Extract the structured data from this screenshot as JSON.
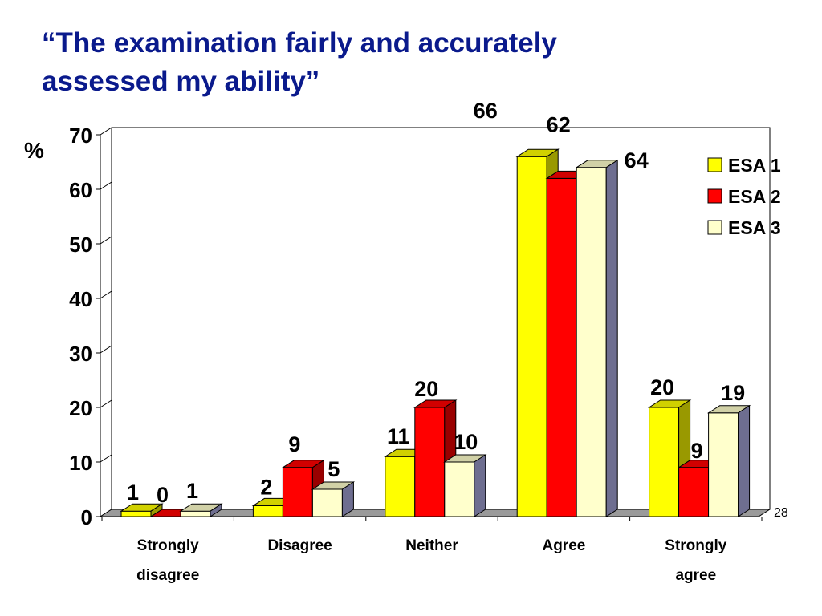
{
  "slide": {
    "title_lines": [
      "“The examination fairly and accurately",
      "assessed my ability”"
    ],
    "page_number": "28"
  },
  "chart_data": {
    "type": "bar",
    "title": "“The examination fairly and accurately assessed my ability”",
    "ylabel": "%",
    "xlabel": "",
    "ylim": [
      0,
      70
    ],
    "yticks": [
      0,
      10,
      20,
      30,
      40,
      50,
      60,
      70
    ],
    "categories": [
      [
        "Strongly",
        "disagree"
      ],
      [
        "Disagree"
      ],
      [
        "Neither"
      ],
      [
        "Agree"
      ],
      [
        "Strongly",
        "agree"
      ]
    ],
    "series": [
      {
        "name": "ESA 1",
        "values": [
          1,
          2,
          11,
          66,
          20
        ],
        "color": "#ffff00"
      },
      {
        "name": "ESA 2",
        "values": [
          0,
          9,
          20,
          62,
          9
        ],
        "color": "#ff0000"
      },
      {
        "name": "ESA 3",
        "values": [
          1,
          5,
          10,
          64,
          19
        ],
        "color": "#ffffcc"
      }
    ],
    "legend_position": "top-right",
    "grid": false,
    "three_d": true
  }
}
